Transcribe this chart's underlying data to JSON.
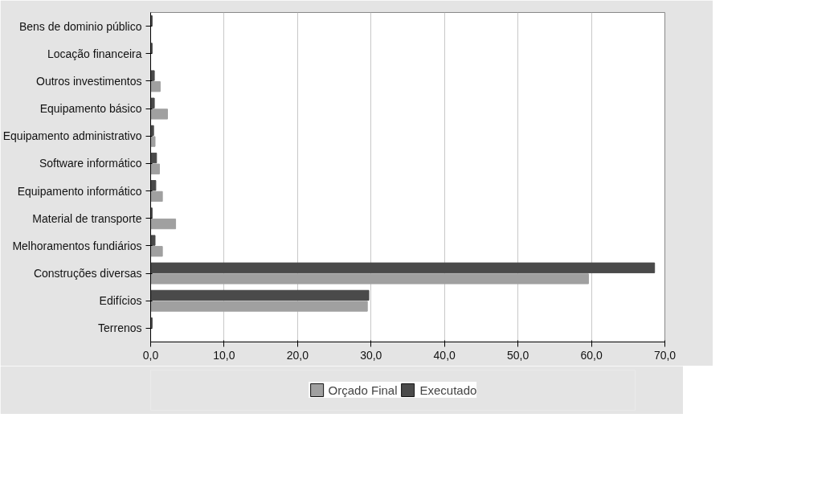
{
  "chart_data": {
    "type": "bar",
    "orientation": "horizontal",
    "categories": [
      "Bens de dominio público",
      "Locação financeira",
      "Outros investimentos",
      "Equipamento básico",
      "Equipamento administrativo",
      "Software informático",
      "Equipamento informático",
      "Material de transporte",
      "Melhoramentos fundiários",
      "Construções diversas",
      "Edifícios",
      "Terrenos"
    ],
    "series": [
      {
        "name": "Orçado Final",
        "color": "#a0a0a0",
        "values": [
          0,
          0,
          1.3,
          2.3,
          0.6,
          1.2,
          1.6,
          3.4,
          1.6,
          59.6,
          29.5,
          0
        ]
      },
      {
        "name": "Executado",
        "color": "#4a4a4a",
        "values": [
          0.2,
          0.2,
          0.5,
          0.5,
          0.4,
          0.8,
          0.7,
          0.2,
          0.6,
          68.6,
          29.7,
          0.2
        ]
      }
    ],
    "xlim": [
      0,
      70
    ],
    "xticks": [
      {
        "value": 0,
        "label": "0,0"
      },
      {
        "value": 10,
        "label": "10,0"
      },
      {
        "value": 20,
        "label": "20,0"
      },
      {
        "value": 30,
        "label": "30,0"
      },
      {
        "value": 40,
        "label": "40,0"
      },
      {
        "value": 50,
        "label": "50,0"
      },
      {
        "value": 60,
        "label": "60,0"
      },
      {
        "value": 70,
        "label": "70,0"
      }
    ],
    "grid": "x",
    "legend": "bottom"
  }
}
